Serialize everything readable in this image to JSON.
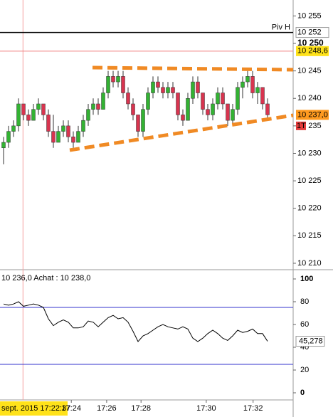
{
  "chart_data": [
    {
      "type": "candlestick",
      "categories": [
        null,
        null,
        null,
        null,
        null,
        null,
        null,
        null,
        null,
        null,
        null,
        null,
        null,
        null,
        null,
        null,
        null,
        null,
        null,
        null,
        null,
        null,
        null,
        null,
        null,
        null,
        null,
        null,
        null,
        null,
        null,
        null,
        null,
        null,
        null,
        null,
        null,
        null,
        null,
        null,
        null,
        null,
        null,
        null,
        null,
        null,
        null,
        null,
        null,
        null,
        null,
        null,
        null,
        null
      ],
      "open": [
        10231,
        10232,
        10234,
        10235,
        10239,
        10237,
        10236,
        10238,
        10239,
        10237,
        10234,
        10232,
        10234,
        10235,
        10233,
        10232,
        10234,
        10236,
        10238,
        10239,
        10238,
        10241,
        10244,
        10243,
        10244,
        10241,
        10239,
        10237,
        10234,
        10238,
        10241,
        10243,
        10242,
        10241,
        10242,
        10241,
        10237,
        10236,
        10240,
        10243,
        10241,
        10238,
        10237,
        10239,
        10241,
        10239,
        10236,
        10238,
        10242,
        10243,
        10244,
        10241,
        10242,
        10239
      ],
      "high": [
        10233,
        10235,
        10236,
        10240,
        10239,
        10238,
        10239,
        10240,
        10239,
        10238,
        10237,
        10235,
        10236,
        10236,
        10234,
        10235,
        10237,
        10239,
        10240,
        10240,
        10242,
        10245,
        10245,
        10245,
        10245,
        10242,
        10240,
        10237,
        10239,
        10242,
        10244,
        10244,
        10243,
        10243,
        10243,
        10241,
        10238,
        10241,
        10244,
        10244,
        10241,
        10239,
        10240,
        10242,
        10242,
        10239,
        10239,
        10243,
        10244,
        10245,
        10245,
        10243,
        10242,
        10240
      ],
      "low": [
        10228,
        10231,
        10233,
        10234,
        10236,
        10235,
        10236,
        10237,
        10236,
        10233,
        10231,
        10232,
        10233,
        10232,
        10231,
        10232,
        10233,
        10235,
        10237,
        10237,
        10238,
        10240,
        10242,
        10242,
        10240,
        10238,
        10236,
        10233,
        10233,
        10237,
        10240,
        10241,
        10240,
        10240,
        10240,
        10236,
        10235,
        10236,
        10239,
        10240,
        10237,
        10236,
        10236,
        10238,
        10238,
        10235,
        10235,
        10237,
        10240,
        10242,
        10240,
        10239,
        10238,
        10236
      ],
      "close": [
        10232,
        10234,
        10235,
        10239,
        10237,
        10236,
        10238,
        10239,
        10237,
        10234,
        10232,
        10234,
        10235,
        10233,
        10232,
        10234,
        10236,
        10238,
        10239,
        10238,
        10241,
        10244,
        10243,
        10244,
        10241,
        10239,
        10237,
        10234,
        10238,
        10241,
        10243,
        10242,
        10241,
        10242,
        10241,
        10237,
        10236,
        10240,
        10243,
        10241,
        10238,
        10237,
        10239,
        10241,
        10239,
        10236,
        10238,
        10242,
        10243,
        10244,
        10241,
        10242,
        10239,
        10237
      ],
      "up_color": "#33b233",
      "down_color": "#d8344f",
      "ylim": [
        10208.7,
        10257.9
      ],
      "yticks": [
        {
          "value": 10255,
          "label": "10 255"
        },
        {
          "value": 10250,
          "label": "10 250"
        },
        {
          "value": 10245,
          "label": "10 245"
        },
        {
          "value": 10240,
          "label": "10 240"
        },
        {
          "value": 10235,
          "label": "10 235"
        },
        {
          "value": 10230,
          "label": "10 230"
        },
        {
          "value": 10225,
          "label": "10 225"
        },
        {
          "value": 10220,
          "label": "10 220"
        },
        {
          "value": 10215,
          "label": "10 215"
        },
        {
          "value": 10210,
          "label": "10 210"
        }
      ],
      "levels": [
        {
          "name": "Piv H",
          "value": 10252,
          "label": "10 252",
          "color": "#000000",
          "box": "#ffffff"
        },
        {
          "value": 10248.6,
          "label": "10 248,6",
          "color": "#f08080",
          "box": "#ffe21a"
        },
        {
          "value": 10237.0,
          "label": "10 237,0",
          "color": "#ff8c1a",
          "box": "#ff9a1f"
        }
      ],
      "marker": {
        "value": 10235,
        "label": "1T",
        "box": "#e23b3b"
      },
      "crosshair": {
        "x": 3.9,
        "label": "sept. 2015 17:22:37"
      },
      "xticks": [
        {
          "value": 13.6,
          "label": "17:24"
        },
        {
          "value": 20.7,
          "label": "17:26"
        },
        {
          "value": 27.6,
          "label": "17:28"
        },
        {
          "value": 40.7,
          "label": "17:30"
        },
        {
          "value": 50.1,
          "label": "17:32"
        }
      ]
    },
    {
      "type": "line",
      "title": "10 236,0 Achat : 10 238,0",
      "values": [
        78,
        77,
        78,
        80,
        76,
        77,
        78,
        77,
        75,
        65,
        59,
        62,
        64,
        62,
        57,
        57,
        58,
        63,
        62,
        58,
        62,
        66,
        68,
        65,
        66,
        62,
        54,
        45,
        50,
        52,
        55,
        58,
        60,
        58,
        57,
        56,
        58,
        56,
        48,
        45,
        48,
        52,
        55,
        52,
        48,
        46,
        50,
        55,
        53,
        54,
        56,
        52,
        52,
        45.278
      ],
      "value_labels": [
        null,
        null,
        null,
        null,
        null,
        null,
        null,
        null,
        null,
        null,
        null,
        null,
        null,
        null,
        null,
        null,
        null,
        null,
        null,
        null,
        null,
        null,
        null,
        null,
        null,
        null,
        null,
        null,
        null,
        null,
        null,
        null,
        null,
        null,
        null,
        null,
        null,
        null,
        null,
        null,
        null,
        null,
        null,
        null,
        null,
        null,
        null,
        null,
        null,
        null,
        null,
        null,
        null,
        "45,278"
      ],
      "color": "#000000",
      "ylim": [
        -6.25,
        107.5
      ],
      "yticks": [
        100,
        80,
        60,
        40,
        20,
        0
      ],
      "hlines": [
        75,
        25
      ],
      "hline_color": "#3333cc"
    }
  ]
}
